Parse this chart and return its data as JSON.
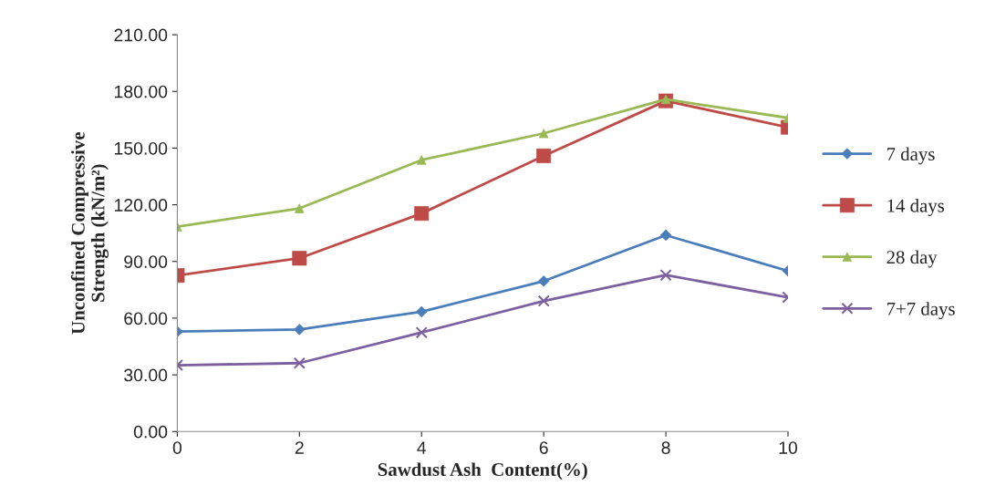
{
  "chart_data": {
    "type": "line",
    "xlabel": "Sawdust Ash  Content(%)",
    "ylabel": "Unconfined Compressive\nStrength (kN/m²)",
    "x": [
      0,
      2,
      4,
      6,
      8,
      10
    ],
    "xlim": [
      0,
      10
    ],
    "xticks": [
      0,
      2,
      4,
      6,
      8,
      10
    ],
    "ylim": [
      0,
      210
    ],
    "yticks": [
      {
        "value": 0,
        "label": "0.00"
      },
      {
        "value": 30,
        "label": "30.00"
      },
      {
        "value": 60,
        "label": "60.00"
      },
      {
        "value": 90,
        "label": "90.00"
      },
      {
        "value": 120,
        "label": "120.00"
      },
      {
        "value": 150,
        "label": "150.00"
      },
      {
        "value": 180,
        "label": "180.00"
      },
      {
        "value": 210,
        "label": "210.00"
      }
    ],
    "grid": false,
    "legend": "right",
    "series": [
      {
        "name": "7 days",
        "color": "#4a7ebb",
        "marker": "diamond",
        "values": [
          52.9,
          54,
          63.4,
          79.6,
          103.9,
          85
        ]
      },
      {
        "name": "14 days",
        "color": "#be4b48",
        "marker": "square",
        "values": [
          82.6,
          91.7,
          115.4,
          145.9,
          175,
          161
        ]
      },
      {
        "name": "28 day",
        "color": "#98b954",
        "marker": "triangle",
        "values": [
          108.4,
          118.1,
          143.7,
          157.8,
          175.8,
          166
        ]
      },
      {
        "name": "7+7 days",
        "color": "#7d60a0",
        "marker": "cross",
        "values": [
          35.1,
          36.2,
          52.4,
          69.1,
          82.8,
          71
        ]
      }
    ]
  }
}
